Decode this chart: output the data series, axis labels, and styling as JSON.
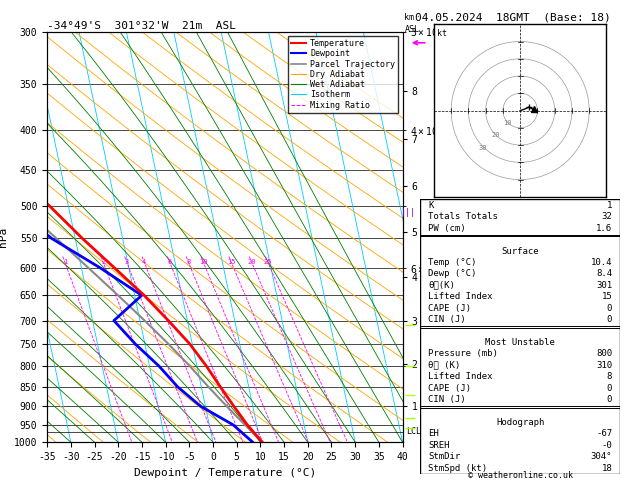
{
  "title_left": "-34°49'S  301°32'W  21m  ASL",
  "title_right": "04.05.2024  18GMT  (Base: 18)",
  "xlabel": "Dewpoint / Temperature (°C)",
  "ylabel_left": "hPa",
  "pressure_levels": [
    300,
    350,
    400,
    450,
    500,
    550,
    600,
    650,
    700,
    750,
    800,
    850,
    900,
    950,
    1000
  ],
  "xlim": [
    -35,
    40
  ],
  "pres_min": 300,
  "pres_max": 1000,
  "skew_factor": 35.0,
  "temp_color": "#ff0000",
  "dewp_color": "#0000ff",
  "parcel_color": "#888888",
  "dry_adiabat_color": "#ffa500",
  "wet_adiabat_color": "#008000",
  "isotherm_color": "#00ccff",
  "mixing_ratio_color": "#ff00ff",
  "temperature_profile": {
    "pressure": [
      1000,
      950,
      900,
      850,
      800,
      750,
      700,
      650,
      600,
      550,
      500,
      450,
      400,
      350,
      300
    ],
    "temp": [
      10.4,
      8.0,
      6.0,
      4.0,
      2.0,
      -0.5,
      -4.0,
      -8.0,
      -13.0,
      -18.5,
      -24.0,
      -30.5,
      -37.0,
      -44.0,
      -51.0
    ]
  },
  "dewpoint_profile": {
    "pressure": [
      1000,
      950,
      900,
      850,
      800,
      750,
      700,
      650,
      600,
      550,
      500,
      450,
      400,
      350,
      300
    ],
    "dewp": [
      8.4,
      5.0,
      -1.0,
      -5.0,
      -8.0,
      -12.0,
      -15.5,
      -8.5,
      -16.0,
      -25.0,
      -32.0,
      -39.0,
      -45.0,
      -50.0,
      -56.0
    ]
  },
  "parcel_profile": {
    "pressure": [
      1000,
      950,
      900,
      850,
      800,
      750,
      700,
      650,
      600,
      550,
      500,
      450,
      400,
      350,
      300
    ],
    "temp": [
      10.4,
      7.5,
      4.5,
      1.5,
      -1.5,
      -5.0,
      -9.0,
      -13.5,
      -18.5,
      -24.0,
      -30.0,
      -36.5,
      -43.5,
      -51.0,
      -59.0
    ]
  },
  "mixing_ratio_lines": [
    1,
    2,
    3,
    4,
    6,
    8,
    10,
    15,
    20,
    25
  ],
  "km_ticks": {
    "values": [
      1,
      2,
      3,
      4,
      5,
      6,
      7,
      8
    ],
    "pressures": [
      898,
      795,
      700,
      616,
      540,
      472,
      411,
      357
    ]
  },
  "lcl_pressure": 970,
  "surface_data": {
    "K": "1",
    "Totals Totals": "32",
    "PW (cm)": "1.6",
    "Temp (C)": "10.4",
    "Dewp (C)": "8.4",
    "theta_e_K": "301",
    "Lifted Index": "15",
    "CAPE (J)": "0",
    "CIN (J)": "0"
  },
  "most_unstable": {
    "Pressure (mb)": "800",
    "theta_e_K": "310",
    "Lifted Index": "8",
    "CAPE (J)": "0",
    "CIN (J)": "0"
  },
  "hodograph": {
    "EH": "-67",
    "SREH": "-0",
    "StmDir": "304°",
    "StmSpd (kt)": "18"
  },
  "legend_entries": [
    {
      "label": "Temperature",
      "color": "#ff0000",
      "lw": 1.5,
      "ls": "-"
    },
    {
      "label": "Dewpoint",
      "color": "#0000ff",
      "lw": 1.5,
      "ls": "-"
    },
    {
      "label": "Parcel Trajectory",
      "color": "#888888",
      "lw": 1.2,
      "ls": "-"
    },
    {
      "label": "Dry Adiabat",
      "color": "#ffa500",
      "lw": 0.8,
      "ls": "-"
    },
    {
      "label": "Wet Adiabat",
      "color": "#008000",
      "lw": 0.8,
      "ls": "-"
    },
    {
      "label": "Isotherm",
      "color": "#00ccff",
      "lw": 0.8,
      "ls": "-"
    },
    {
      "label": "Mixing Ratio",
      "color": "#ff00ff",
      "lw": 0.7,
      "ls": "--"
    }
  ],
  "side_markers": [
    {
      "pressure": 310,
      "color": "#ff00ff",
      "symbol": "wind_barb"
    },
    {
      "pressure": 205,
      "color": "#ff00ff",
      "symbol": "wind_barb"
    },
    {
      "pressure": 510,
      "color": "#9900cc",
      "symbol": "wind_barb"
    },
    {
      "pressure": 710,
      "color": "#aaff00",
      "symbol": "wind_barb"
    }
  ]
}
